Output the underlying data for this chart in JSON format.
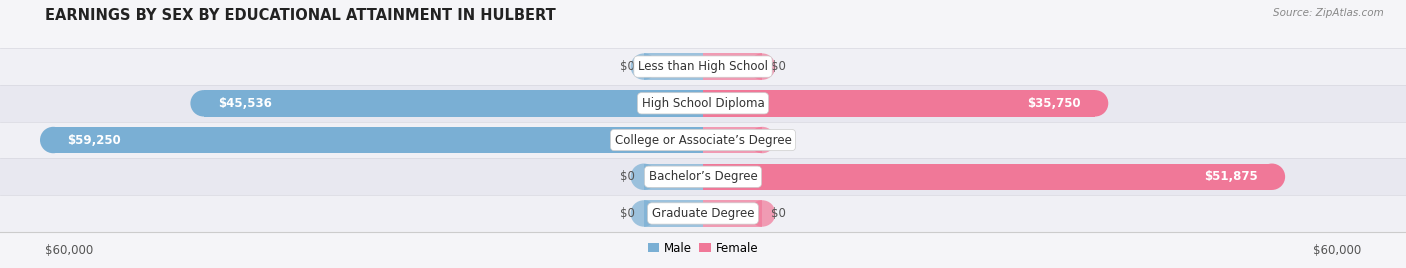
{
  "title": "EARNINGS BY SEX BY EDUCATIONAL ATTAINMENT IN HULBERT",
  "source": "Source: ZipAtlas.com",
  "categories": [
    "Less than High School",
    "High School Diploma",
    "College or Associate’s Degree",
    "Bachelor’s Degree",
    "Graduate Degree"
  ],
  "male_values": [
    0,
    45536,
    59250,
    0,
    0
  ],
  "female_values": [
    0,
    35750,
    0,
    51875,
    0
  ],
  "male_color": "#7aafd4",
  "female_color": "#f07898",
  "row_bg_even": "#f0f0f5",
  "row_bg_odd": "#e8e8f0",
  "fig_bg": "#f5f5f8",
  "axis_max": 60000,
  "title_fontsize": 10.5,
  "label_fontsize": 8.5,
  "tick_fontsize": 8.5,
  "figsize": [
    14.06,
    2.68
  ],
  "dpi": 100
}
